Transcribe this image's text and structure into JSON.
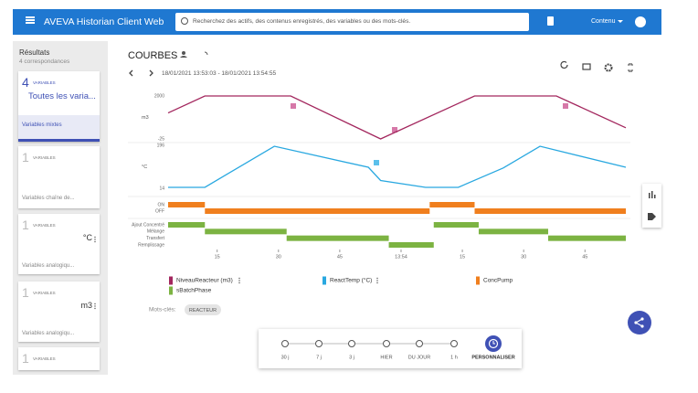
{
  "app_bar": {
    "title": "AVEVA Historian Client Web",
    "search_placeholder": "Recherchez des actifs, des contenus enregistrés, des variables ou des mots-clés.",
    "menu": "Contenu"
  },
  "sidebar": {
    "title": "Résultats",
    "subtitle": "4 correspondances",
    "cards": [
      {
        "count": "4",
        "count_label": "VARIABLES",
        "name": "Toutes les varia...",
        "description": "Variables mixtes"
      },
      {
        "count": "1",
        "count_label": "VARIABLES",
        "description": "Variables chaîne de..."
      },
      {
        "count": "1",
        "count_label": "VARIABLES",
        "unit": "°C",
        "description": "Variables analogiqu..."
      },
      {
        "count": "1",
        "count_label": "VARIABLES",
        "unit": "m3",
        "description": "Variables analogiqu..."
      },
      {
        "count": "1",
        "count_label": "VARIABLES"
      }
    ]
  },
  "header": {
    "title": "COURBES",
    "time_range": "18/01/2021 13:53:03 - 18/01/2021 13:54:55"
  },
  "chart_data": [
    {
      "type": "line",
      "y_label": "m3",
      "xlim": [
        3,
        115
      ],
      "ylim": [
        -25,
        2000
      ],
      "yticks": [
        2000,
        -25
      ],
      "series": [
        {
          "name": "NiveauReacteur (m3)",
          "color": "#a3275e",
          "x": [
            3,
            12,
            33,
            55,
            78,
            98,
            115
          ],
          "values": [
            1200,
            2000,
            2000,
            -25,
            2000,
            2000,
            500
          ]
        }
      ]
    },
    {
      "type": "line",
      "y_label": "°C",
      "xlim": [
        3,
        115
      ],
      "ylim": [
        14,
        196
      ],
      "yticks": [
        196,
        14
      ],
      "series": [
        {
          "name": "ReactTemp (°C)",
          "color": "#29a8e0",
          "x": [
            3,
            12,
            29,
            52,
            55,
            66,
            74,
            85,
            94,
            115
          ],
          "values": [
            18,
            18,
            192,
            103,
            47,
            18,
            18,
            100,
            192,
            103
          ]
        }
      ]
    },
    {
      "type": "step",
      "xlim": [
        3,
        115
      ],
      "ylim": [
        0,
        1
      ],
      "yticks": [
        {
          "value": 1,
          "label": "ON"
        },
        {
          "value": 0,
          "label": "OFF"
        }
      ],
      "series": [
        {
          "name": "ConcPump",
          "color": "#f07f1e",
          "x": [
            3,
            12,
            67,
            78
          ],
          "values": [
            1,
            0,
            1,
            0
          ]
        }
      ]
    },
    {
      "type": "step",
      "xlim": [
        3,
        115
      ],
      "ylim": [
        0,
        3
      ],
      "yticks": [
        {
          "value": 3,
          "label": "Ajout Concentré"
        },
        {
          "value": 2,
          "label": "Mélange"
        },
        {
          "value": 1,
          "label": "Transfert"
        },
        {
          "value": 0,
          "label": "Remplissage"
        }
      ],
      "xticks": [
        15,
        30,
        45,
        {
          "value": 60,
          "label": "13:54"
        },
        {
          "value": 75,
          "label": "15"
        },
        {
          "value": 90,
          "label": "30"
        },
        {
          "value": 105,
          "label": "45"
        }
      ],
      "series": [
        {
          "name": "sBatchPhase",
          "color": "#7cb342",
          "x": [
            3,
            12,
            32,
            57,
            68,
            79,
            96
          ],
          "values": [
            3,
            2,
            1,
            0,
            3,
            2,
            1
          ]
        }
      ]
    }
  ],
  "keywords": {
    "label": "Mots-clés:",
    "chips": [
      "REACTEUR"
    ]
  },
  "time_selector": {
    "options": [
      "30 j",
      "7 j",
      "3 j",
      "HIER",
      "DU JOUR",
      "1 h",
      "PERSONNALISER"
    ]
  }
}
